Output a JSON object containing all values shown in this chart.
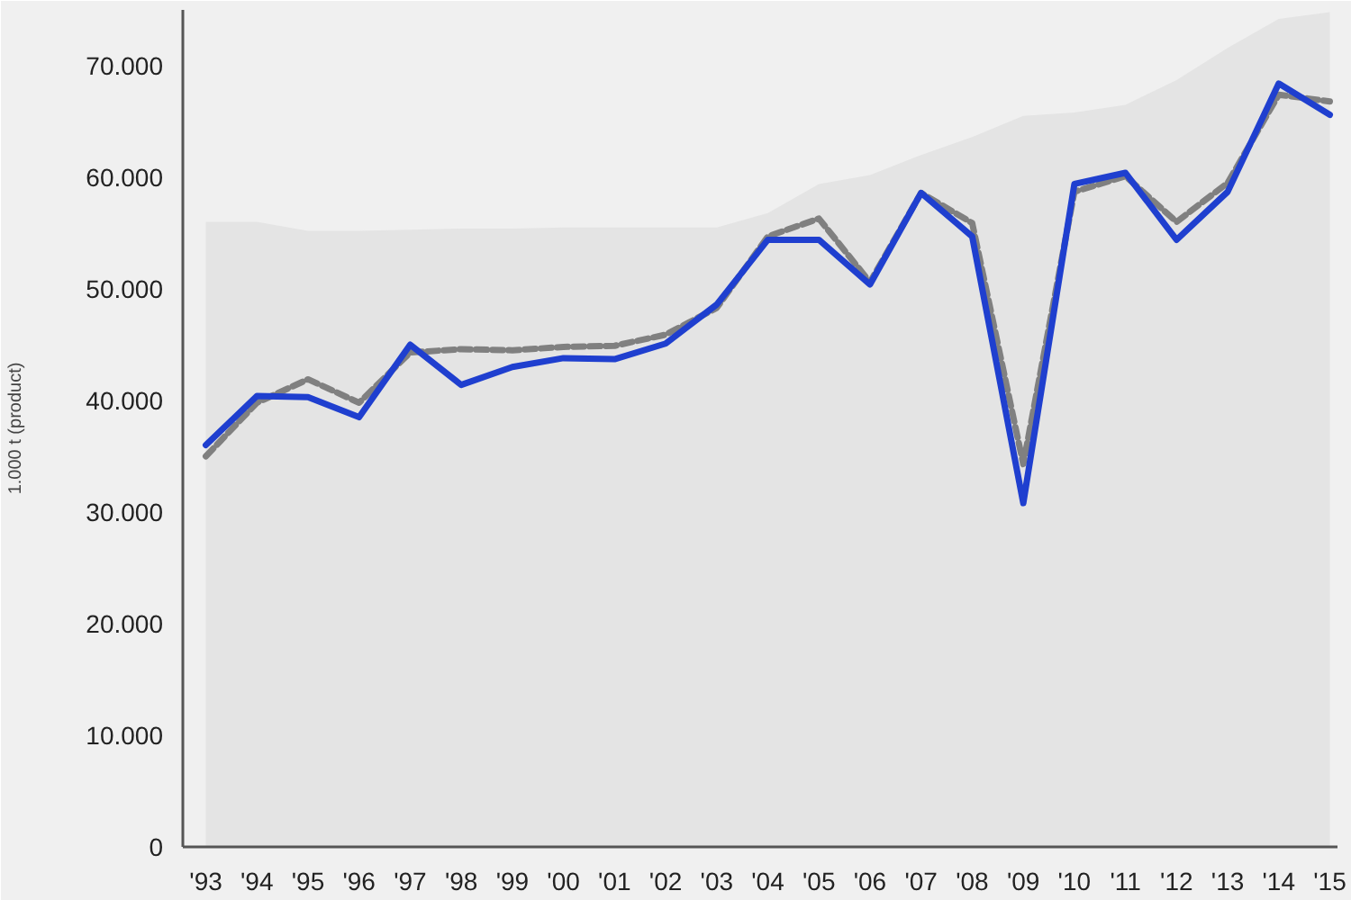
{
  "chart_data": {
    "type": "line",
    "ylabel": "1.000 t (product)",
    "categories": [
      "'93",
      "'94",
      "'95",
      "'96",
      "'97",
      "'98",
      "'99",
      "'00",
      "'01",
      "'02",
      "'03",
      "'04",
      "'05",
      "'06",
      "'07",
      "'08",
      "'09",
      "'10",
      "'11",
      "'12",
      "'13",
      "'14",
      "'15"
    ],
    "series": [
      {
        "type": "area",
        "color": "#e4e4e4",
        "values": [
          56000,
          56000,
          55200,
          55200,
          55300,
          55400,
          55400,
          55500,
          55500,
          55500,
          55500,
          56800,
          59400,
          60200,
          62000,
          63600,
          65500,
          65800,
          66500,
          68700,
          71600,
          74200,
          74800
        ]
      },
      {
        "color": "#808080",
        "line_style": "dashed",
        "values": [
          35000,
          39800,
          41900,
          39800,
          44300,
          44600,
          44500,
          44800,
          44900,
          45900,
          48300,
          54700,
          56300,
          50600,
          58600,
          55900,
          34300,
          58700,
          60100,
          56000,
          59500,
          67400,
          66800
        ]
      },
      {
        "color": "#1f3fcf",
        "line_style": "solid",
        "values": [
          36000,
          40400,
          40300,
          38500,
          45000,
          41400,
          43000,
          43800,
          43700,
          45100,
          48600,
          54400,
          54400,
          50400,
          58600,
          54700,
          30800,
          59400,
          60400,
          54400,
          58700,
          68400,
          65600
        ]
      }
    ],
    "ylim": [
      0,
      75000
    ],
    "yticks": [
      0,
      {
        "value": 10000,
        "label": "10.000"
      },
      {
        "value": 20000,
        "label": "20.000"
      },
      {
        "value": 30000,
        "label": "30.000"
      },
      {
        "value": 40000,
        "label": "40.000"
      },
      {
        "value": 50000,
        "label": "50.000"
      },
      {
        "value": 60000,
        "label": "60.000"
      },
      {
        "value": 70000,
        "label": "70.000"
      }
    ],
    "grid": false
  }
}
